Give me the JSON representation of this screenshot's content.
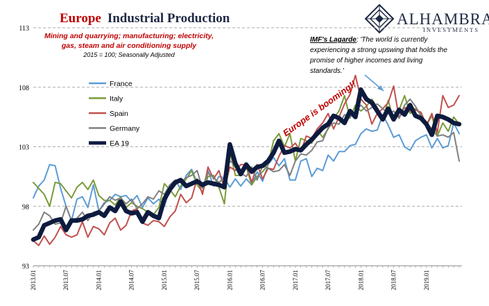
{
  "title_part1": "Europe",
  "title_part2": "Industrial Production",
  "subtitle_line1": "Mining and quarrying; manufacturing; electricity,",
  "subtitle_line2": "gas, steam and air conditioning supply",
  "note": "2015 = 100; Seasonally Adjusted",
  "logo": {
    "name": "ALHAMBRA",
    "tagline": "INVESTMENTS"
  },
  "annotation": {
    "head": "IMF's Lagarde",
    "lines": [
      ": 'The world is currently",
      "experiencing a strong upswing that holds the",
      "promise of higher incomes and living",
      "standards.'"
    ]
  },
  "callout": "Europe is booming!!",
  "colors": {
    "france": "#5b9bd5",
    "italy": "#7a9a3a",
    "spain": "#c0504d",
    "germany": "#7f7f7f",
    "ea19": "#0d1b3e",
    "grid": "#aaaaaa",
    "title_red": "#c00000"
  },
  "chart_data": {
    "type": "line",
    "title": "Europe Industrial Production",
    "ylim": [
      93,
      113
    ],
    "yticks": [
      93,
      98,
      103,
      108,
      113
    ],
    "ytick_labels": [
      "93",
      "98",
      "103",
      "108",
      "113"
    ],
    "x_start": "2013.01",
    "n_months": 79,
    "xtick_labels": [
      "2013.01",
      "2013.07",
      "2014.01",
      "2014.07",
      "2015.01",
      "2015.07",
      "2016.01",
      "2016.07",
      "2017.01",
      "2017.07",
      "2018.01",
      "2018.07",
      "2019.01"
    ],
    "grid": true,
    "legend_position": "left",
    "series": [
      {
        "name": "France",
        "color_key": "france",
        "values": [
          98.7,
          99.7,
          100.2,
          101.5,
          101.4,
          99.5,
          98.0,
          96.8,
          98.6,
          98.8,
          97.9,
          99.8,
          97.6,
          98.3,
          98.5,
          99.0,
          98.8,
          98.9,
          98.4,
          98.9,
          97.9,
          98.7,
          98.2,
          98.6,
          98.0,
          99.4,
          100.2,
          99.4,
          100.6,
          101.1,
          100.0,
          99.5,
          101.0,
          99.7,
          100.5,
          100.4,
          99.6,
          100.3,
          99.7,
          100.3,
          99.8,
          100.9,
          100.1,
          101.5,
          102.1,
          101.4,
          102.0,
          100.2,
          100.2,
          101.8,
          102.0,
          100.5,
          101.2,
          101.0,
          102.3,
          101.8,
          102.6,
          102.6,
          103.1,
          103.2,
          104.1,
          104.5,
          104.3,
          104.4,
          105.7,
          104.8,
          103.8,
          104.0,
          103.0,
          102.7,
          103.5,
          103.8,
          104.0,
          102.9,
          103.7,
          102.9,
          103.1,
          105.0,
          104.1
        ]
      },
      {
        "name": "Italy",
        "color_key": "italy",
        "values": [
          100.0,
          99.5,
          99.0,
          98.0,
          100.0,
          99.9,
          99.3,
          98.7,
          99.6,
          100.0,
          99.4,
          100.2,
          98.9,
          98.5,
          98.5,
          98.1,
          98.8,
          97.9,
          98.3,
          98.0,
          97.8,
          97.5,
          97.3,
          97.9,
          99.9,
          99.4,
          98.8,
          99.7,
          100.3,
          101.0,
          99.8,
          99.2,
          100.5,
          100.6,
          99.6,
          98.2,
          102.6,
          100.6,
          100.6,
          101.3,
          99.8,
          100.5,
          100.9,
          101.5,
          103.5,
          104.1,
          103.0,
          104.1,
          101.8,
          103.7,
          103.5,
          103.3,
          104.4,
          103.8,
          104.5,
          105.4,
          106.0,
          107.3,
          105.4,
          106.5,
          106.0,
          106.4,
          107.0,
          106.3,
          105.3,
          106.9,
          105.2,
          106.1,
          107.3,
          105.8,
          106.2,
          105.7,
          104.8,
          105.6,
          103.9,
          105.0,
          104.3,
          105.5,
          104.9
        ]
      },
      {
        "name": "Spain",
        "color_key": "spain",
        "values": [
          95.1,
          94.7,
          95.5,
          94.8,
          95.4,
          96.3,
          95.6,
          95.4,
          95.6,
          96.7,
          95.4,
          96.3,
          96.1,
          95.6,
          96.6,
          97.0,
          96.0,
          96.4,
          97.6,
          97.8,
          96.6,
          96.4,
          96.8,
          96.7,
          96.3,
          97.1,
          97.6,
          99.0,
          98.3,
          98.7,
          100.3,
          99.0,
          101.3,
          100.3,
          101.0,
          99.5,
          101.3,
          101.0,
          101.5,
          101.5,
          100.0,
          101.5,
          100.3,
          101.2,
          101.1,
          102.2,
          103.1,
          102.9,
          103.3,
          102.6,
          103.9,
          103.7,
          104.5,
          105.0,
          105.8,
          104.5,
          105.5,
          106.6,
          107.4,
          109.0,
          107.0,
          106.5,
          104.9,
          105.8,
          106.2,
          106.7,
          108.1,
          105.4,
          106.3,
          106.0,
          106.1,
          105.9,
          104.8,
          105.8,
          104.2,
          107.3,
          106.3,
          106.5,
          107.3
        ]
      },
      {
        "name": "Germany",
        "color_key": "germany",
        "values": [
          96.0,
          96.5,
          97.5,
          97.2,
          96.5,
          96.6,
          98.0,
          96.8,
          97.0,
          97.5,
          96.8,
          97.5,
          97.6,
          98.2,
          98.8,
          98.5,
          98.7,
          98.2,
          98.6,
          97.8,
          98.2,
          98.8,
          98.6,
          99.3,
          99.0,
          99.8,
          100.2,
          100.0,
          100.4,
          100.6,
          101.0,
          99.5,
          100.8,
          100.4,
          100.0,
          100.4,
          101.8,
          101.5,
          100.8,
          100.5,
          101.3,
          100.2,
          101.4,
          101.2,
          100.9,
          101.0,
          101.5,
          100.6,
          101.8,
          102.4,
          102.3,
          102.7,
          103.4,
          103.5,
          104.6,
          105.0,
          104.9,
          105.7,
          105.5,
          106.0,
          106.5,
          106.0,
          106.3,
          106.6,
          106.2,
          105.8,
          106.0,
          105.4,
          106.5,
          107.0,
          106.4,
          105.6,
          105.0,
          104.5,
          103.9,
          104.0,
          103.8,
          104.2,
          101.8
        ]
      },
      {
        "name": "EA 19",
        "color_key": "ea19",
        "values": [
          95.2,
          95.4,
          96.4,
          96.6,
          96.8,
          96.9,
          96.0,
          96.8,
          96.8,
          96.9,
          97.2,
          97.3,
          97.5,
          97.2,
          97.9,
          97.6,
          98.4,
          97.6,
          97.4,
          97.5,
          96.7,
          97.5,
          97.2,
          97.0,
          98.6,
          99.4,
          100.0,
          100.2,
          99.7,
          99.9,
          100.1,
          99.8,
          100.0,
          99.9,
          99.8,
          99.6,
          103.2,
          101.6,
          100.7,
          101.5,
          100.9,
          101.3,
          101.4,
          101.8,
          102.5,
          103.5,
          102.5,
          102.6,
          102.8,
          102.7,
          103.2,
          103.6,
          104.1,
          104.6,
          104.9,
          105.6,
          105.4,
          105.0,
          106.0,
          105.5,
          107.8,
          107.0,
          106.7,
          106.0,
          105.3,
          106.2,
          105.3,
          106.1,
          105.7,
          106.5,
          105.6,
          105.4,
          104.9,
          104.0,
          105.6,
          105.5,
          105.3,
          105.0,
          104.9
        ]
      }
    ]
  }
}
